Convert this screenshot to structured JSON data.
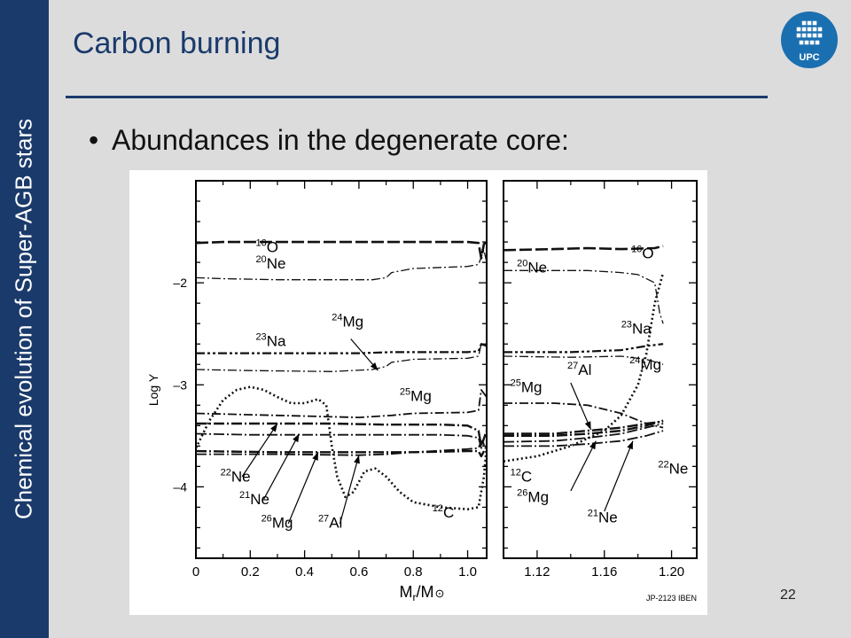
{
  "slide": {
    "sidebar_text": "Chemical evolution of Super-AGB stars",
    "title": "Carbon burning",
    "bullet": "Abundances in the degenerate core:",
    "slide_number": "22",
    "logo_text": "UPC",
    "colors": {
      "sidebar": "#1a3a6b",
      "title": "#1a3a6b",
      "background": "#dcdcdc"
    }
  },
  "chart_data": {
    "type": "line",
    "ylabel": "Log Y",
    "xlabel": "M",
    "xlabel_sub": "r",
    "xlabel_tail": "/M",
    "xlabel_symbol": "⊙",
    "ylim": [
      -4.7,
      -1.0
    ],
    "credit": "JP-2123 IBEN",
    "y_ticks": [
      {
        "value": -2,
        "label": "–2"
      },
      {
        "value": -3,
        "label": "–3"
      },
      {
        "value": -4,
        "label": "–4"
      }
    ],
    "panels": [
      {
        "xlim": [
          0,
          1.07
        ],
        "x_ticks": [
          {
            "value": 0,
            "label": "0"
          },
          {
            "value": 0.2,
            "label": "0.2"
          },
          {
            "value": 0.4,
            "label": "0.4"
          },
          {
            "value": 0.6,
            "label": "0.6"
          },
          {
            "value": 0.8,
            "label": "0.8"
          },
          {
            "value": 1.0,
            "label": "1.0"
          }
        ],
        "series": [
          {
            "name": "16O",
            "mass": "16",
            "el": "O",
            "dash": "14 4",
            "width": 2.6,
            "x": [
              0,
              0.1,
              0.3,
              0.5,
              0.7,
              0.9,
              1.0,
              1.04,
              1.05,
              1.06,
              1.07
            ],
            "y": [
              -1.61,
              -1.6,
              -1.6,
              -1.6,
              -1.6,
              -1.6,
              -1.6,
              -1.61,
              -1.76,
              -1.62,
              -1.6
            ]
          },
          {
            "name": "20Ne",
            "mass": "20",
            "el": "Ne",
            "dash": "10 3 2 3",
            "width": 1.3,
            "x": [
              0,
              0.1,
              0.3,
              0.5,
              0.65,
              0.7,
              0.72,
              0.8,
              1.0,
              1.04,
              1.06,
              1.07
            ],
            "y": [
              -1.95,
              -1.96,
              -1.97,
              -1.97,
              -1.97,
              -1.95,
              -1.9,
              -1.86,
              -1.84,
              -1.82,
              -1.68,
              -1.8
            ]
          },
          {
            "name": "24Mg",
            "mass": "24",
            "el": "Mg",
            "dash": "10 3 2 3",
            "width": 1.3,
            "x": [
              0,
              0.2,
              0.5,
              0.65,
              0.7,
              0.72,
              0.8,
              1.0,
              1.04,
              1.05,
              1.07
            ],
            "y": [
              -2.85,
              -2.86,
              -2.87,
              -2.85,
              -2.82,
              -2.78,
              -2.75,
              -2.74,
              -2.72,
              -2.6,
              -2.62
            ]
          },
          {
            "name": "23Na",
            "mass": "23",
            "el": "Na",
            "dash": "10 3 3 3 3 3",
            "width": 2.2,
            "x": [
              0,
              0.3,
              0.6,
              0.72,
              0.8,
              1.0,
              1.04,
              1.05,
              1.07
            ],
            "y": [
              -2.69,
              -2.69,
              -2.69,
              -2.68,
              -2.68,
              -2.68,
              -2.67,
              -2.6,
              -2.62
            ]
          },
          {
            "name": "25Mg",
            "mass": "25",
            "el": "Mg",
            "dash": "10 3 2 3",
            "width": 1.8,
            "x": [
              0,
              0.3,
              0.6,
              0.72,
              0.8,
              1.0,
              1.04,
              1.05,
              1.07
            ],
            "y": [
              -3.28,
              -3.3,
              -3.32,
              -3.3,
              -3.28,
              -3.27,
              -3.25,
              -3.05,
              -3.12
            ]
          },
          {
            "name": "22Ne",
            "mass": "22",
            "el": "Ne",
            "dash": "12 3 2 3",
            "width": 2.4,
            "x": [
              0,
              0.2,
              0.5,
              0.7,
              0.9,
              1.0,
              1.04,
              1.05,
              1.07
            ],
            "y": [
              -3.38,
              -3.38,
              -3.38,
              -3.39,
              -3.39,
              -3.4,
              -3.45,
              -3.6,
              -3.45
            ]
          },
          {
            "name": "21Ne",
            "mass": "21",
            "el": "Ne",
            "dash": "12 3 2 3",
            "width": 1.8,
            "x": [
              0,
              0.2,
              0.5,
              0.7,
              0.9,
              1.0,
              1.04,
              1.05,
              1.07
            ],
            "y": [
              -3.48,
              -3.49,
              -3.49,
              -3.49,
              -3.49,
              -3.5,
              -3.52,
              -3.62,
              -3.55
            ]
          },
          {
            "name": "26Mg",
            "mass": "26",
            "el": "Mg",
            "dash": "12 3 2 3",
            "width": 2.4,
            "x": [
              0,
              0.3,
              0.6,
              0.8,
              1.0,
              1.04,
              1.05,
              1.07
            ],
            "y": [
              -3.65,
              -3.66,
              -3.66,
              -3.66,
              -3.65,
              -3.65,
              -3.7,
              -3.6
            ]
          },
          {
            "name": "27Al",
            "mass": "27",
            "el": "Al",
            "dash": "12 3 2 3",
            "width": 1.8,
            "x": [
              0,
              0.3,
              0.6,
              0.7,
              0.8,
              1.0,
              1.04,
              1.05,
              1.07
            ],
            "y": [
              -3.68,
              -3.68,
              -3.69,
              -3.68,
              -3.66,
              -3.63,
              -3.62,
              -3.55,
              -3.6
            ]
          },
          {
            "name": "12C",
            "mass": "12",
            "el": "C",
            "dash": "2 3",
            "width": 2.6,
            "x": [
              0,
              0.05,
              0.1,
              0.15,
              0.2,
              0.25,
              0.3,
              0.35,
              0.4,
              0.45,
              0.48,
              0.5,
              0.52,
              0.55,
              0.58,
              0.62,
              0.66,
              0.7,
              0.75,
              0.8,
              0.9,
              1.0,
              1.04,
              1.06,
              1.07
            ],
            "y": [
              -3.62,
              -3.35,
              -3.15,
              -3.05,
              -3.02,
              -3.05,
              -3.12,
              -3.18,
              -3.18,
              -3.14,
              -3.2,
              -3.6,
              -3.9,
              -4.1,
              -4.05,
              -3.85,
              -3.82,
              -3.9,
              -4.05,
              -4.15,
              -4.2,
              -4.22,
              -4.2,
              -3.9,
              -3.6
            ]
          }
        ],
        "labels": [
          {
            "mass": "16",
            "el": "O",
            "x": 0.22,
            "y": -1.7
          },
          {
            "mass": "20",
            "el": "Ne",
            "x": 0.22,
            "y": -1.86
          },
          {
            "mass": "24",
            "el": "Mg",
            "x": 0.5,
            "y": -2.43
          },
          {
            "mass": "23",
            "el": "Na",
            "x": 0.22,
            "y": -2.62
          },
          {
            "mass": "25",
            "el": "Mg",
            "x": 0.75,
            "y": -3.16
          },
          {
            "mass": "22",
            "el": "Ne",
            "x": 0.09,
            "y": -3.95
          },
          {
            "mass": "21",
            "el": "Ne",
            "x": 0.16,
            "y": -4.17
          },
          {
            "mass": "26",
            "el": "Mg",
            "x": 0.24,
            "y": -4.4
          },
          {
            "mass": "27",
            "el": "Al",
            "x": 0.45,
            "y": -4.4
          },
          {
            "mass": "12",
            "el": "C",
            "x": 0.87,
            "y": -4.3
          }
        ],
        "arrows": [
          {
            "from": [
              0.57,
              -2.55
            ],
            "to": [
              0.67,
              -2.86
            ]
          },
          {
            "from": [
              0.17,
              -3.9
            ],
            "to": [
              0.3,
              -3.38
            ]
          },
          {
            "from": [
              0.25,
              -4.12
            ],
            "to": [
              0.38,
              -3.48
            ]
          },
          {
            "from": [
              0.34,
              -4.36
            ],
            "to": [
              0.45,
              -3.66
            ]
          },
          {
            "from": [
              0.53,
              -4.36
            ],
            "to": [
              0.6,
              -3.69
            ]
          }
        ]
      },
      {
        "xlim": [
          1.1,
          1.215
        ],
        "x_ticks": [
          {
            "value": 1.12,
            "label": "1.12"
          },
          {
            "value": 1.16,
            "label": "1.16"
          },
          {
            "value": 1.2,
            "label": "1.20"
          }
        ],
        "series": [
          {
            "name": "16O",
            "mass": "16",
            "el": "O",
            "dash": "14 4",
            "width": 2.6,
            "x": [
              1.1,
              1.13,
              1.15,
              1.17,
              1.19,
              1.195
            ],
            "y": [
              -1.68,
              -1.67,
              -1.66,
              -1.67,
              -1.66,
              -1.64
            ]
          },
          {
            "name": "20Ne",
            "mass": "20",
            "el": "Ne",
            "dash": "10 3 2 3",
            "width": 1.3,
            "x": [
              1.1,
              1.13,
              1.15,
              1.17,
              1.18,
              1.19,
              1.193,
              1.195
            ],
            "y": [
              -1.88,
              -1.88,
              -1.88,
              -1.9,
              -1.92,
              -2.0,
              -2.3,
              -2.4
            ]
          },
          {
            "name": "23Na",
            "mass": "23",
            "el": "Na",
            "dash": "10 3 3 3 3 3",
            "width": 2.2,
            "x": [
              1.1,
              1.14,
              1.17,
              1.185,
              1.195
            ],
            "y": [
              -2.68,
              -2.68,
              -2.66,
              -2.62,
              -2.6
            ]
          },
          {
            "name": "24Mg",
            "mass": "24",
            "el": "Mg",
            "dash": "10 3 2 3",
            "width": 1.3,
            "x": [
              1.1,
              1.14,
              1.17,
              1.185,
              1.195
            ],
            "y": [
              -2.72,
              -2.73,
              -2.72,
              -2.75,
              -2.8
            ]
          },
          {
            "name": "25Mg",
            "mass": "25",
            "el": "Mg",
            "dash": "10 3 2 3",
            "width": 1.8,
            "x": [
              1.1,
              1.13,
              1.15,
              1.17,
              1.185,
              1.195
            ],
            "y": [
              -3.18,
              -3.18,
              -3.2,
              -3.28,
              -3.38,
              -3.42
            ]
          },
          {
            "name": "22Ne",
            "mass": "22",
            "el": "Ne",
            "dash": "12 3 2 3",
            "width": 2.4,
            "x": [
              1.1,
              1.13,
              1.15,
              1.17,
              1.185,
              1.195
            ],
            "y": [
              -3.5,
              -3.5,
              -3.48,
              -3.45,
              -3.4,
              -3.35
            ]
          },
          {
            "name": "21Ne",
            "mass": "21",
            "el": "Ne",
            "dash": "12 3 2 3",
            "width": 1.8,
            "x": [
              1.1,
              1.13,
              1.15,
              1.17,
              1.185,
              1.195
            ],
            "y": [
              -3.6,
              -3.6,
              -3.58,
              -3.55,
              -3.5,
              -3.45
            ]
          },
          {
            "name": "26Mg",
            "mass": "26",
            "el": "Mg",
            "dash": "12 3 2 3",
            "width": 2.4,
            "x": [
              1.1,
              1.13,
              1.15,
              1.17,
              1.185,
              1.195
            ],
            "y": [
              -3.48,
              -3.48,
              -3.45,
              -3.42,
              -3.38,
              -3.36
            ]
          },
          {
            "name": "27Al",
            "mass": "27",
            "el": "Al",
            "dash": "12 3 2 3",
            "width": 1.8,
            "x": [
              1.1,
              1.13,
              1.15,
              1.17,
              1.185,
              1.195
            ],
            "y": [
              -3.56,
              -3.55,
              -3.52,
              -3.48,
              -3.42,
              -3.38
            ]
          },
          {
            "name": "12C",
            "mass": "12",
            "el": "C",
            "dash": "2 3",
            "width": 2.6,
            "x": [
              1.1,
              1.12,
              1.14,
              1.16,
              1.17,
              1.18,
              1.185,
              1.19,
              1.195
            ],
            "y": [
              -3.75,
              -3.7,
              -3.6,
              -3.45,
              -3.3,
              -3.0,
              -2.7,
              -2.2,
              -1.9
            ]
          }
        ],
        "labels": [
          {
            "mass": "16",
            "el": "O",
            "x": 1.176,
            "y": -1.76
          },
          {
            "mass": "20",
            "el": "Ne",
            "x": 1.108,
            "y": -1.9
          },
          {
            "mass": "23",
            "el": "Na",
            "x": 1.17,
            "y": -2.5
          },
          {
            "mass": "27",
            "el": "Al",
            "x": 1.138,
            "y": -2.9
          },
          {
            "mass": "24",
            "el": "Mg",
            "x": 1.175,
            "y": -2.85
          },
          {
            "mass": "25",
            "el": "Mg",
            "x": 1.104,
            "y": -3.07
          },
          {
            "mass": "22",
            "el": "Ne",
            "x": 1.192,
            "y": -3.87
          },
          {
            "mass": "12",
            "el": "C",
            "x": 1.104,
            "y": -3.95
          },
          {
            "mass": "26",
            "el": "Mg",
            "x": 1.108,
            "y": -4.15
          },
          {
            "mass": "21",
            "el": "Ne",
            "x": 1.15,
            "y": -4.35
          }
        ],
        "arrows": [
          {
            "from": [
              1.14,
              -2.98
            ],
            "to": [
              1.152,
              -3.44
            ]
          },
          {
            "from": [
              1.14,
              -4.04
            ],
            "to": [
              1.155,
              -3.55
            ]
          },
          {
            "from": [
              1.16,
              -4.24
            ],
            "to": [
              1.177,
              -3.55
            ]
          }
        ]
      }
    ]
  }
}
